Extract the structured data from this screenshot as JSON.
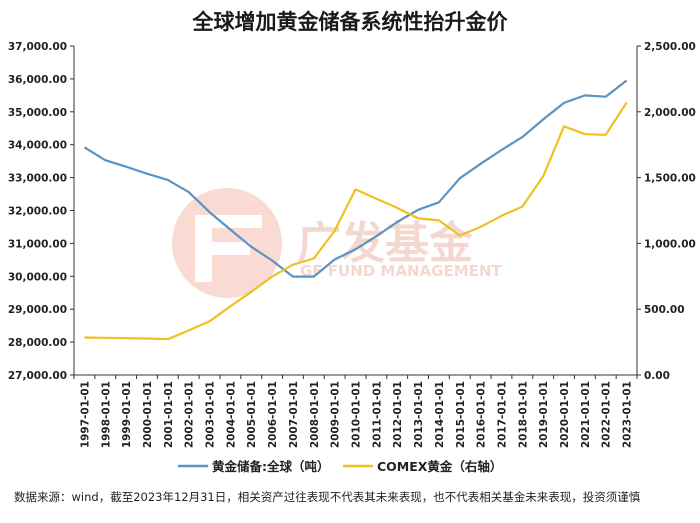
{
  "chart_data": {
    "type": "line",
    "title": "全球增加黄金储备系统性抬升金价",
    "x": [
      "1997-01-01",
      "1998-01-01",
      "1999-01-01",
      "2000-01-01",
      "2001-01-01",
      "2002-01-01",
      "2003-01-01",
      "2004-01-01",
      "2005-01-01",
      "2006-01-01",
      "2007-01-01",
      "2008-01-01",
      "2009-01-01",
      "2010-01-01",
      "2011-01-01",
      "2012-01-01",
      "2013-01-01",
      "2014-01-01",
      "2015-01-01",
      "2016-01-01",
      "2017-01-01",
      "2018-01-01",
      "2019-01-01",
      "2020-01-01",
      "2021-01-01",
      "2022-01-01",
      "2023-01-01"
    ],
    "left_axis": {
      "ylim": [
        27000,
        37000
      ],
      "ticks": [
        "27,000.00",
        "28,000.00",
        "29,000.00",
        "30,000.00",
        "31,000.00",
        "32,000.00",
        "33,000.00",
        "34,000.00",
        "35,000.00",
        "36,000.00",
        "37,000.00"
      ]
    },
    "right_axis": {
      "ylim": [
        0,
        2500
      ],
      "ticks": [
        "0.00",
        "500.00",
        "1,000.00",
        "1,500.00",
        "2,000.00",
        "2,500.00"
      ]
    },
    "series": [
      {
        "name": "黄金储备:全球（吨）",
        "axis": "left",
        "color": "#5b93c2",
        "values": [
          33920,
          33530,
          33330,
          33120,
          32930,
          32560,
          31950,
          31420,
          30900,
          30480,
          29990,
          29990,
          30510,
          30820,
          31220,
          31650,
          32020,
          32250,
          32980,
          33420,
          33840,
          34230,
          34770,
          35270,
          35500,
          35460,
          35950
        ]
      },
      {
        "name": "COMEX黄金（右轴）",
        "axis": "right",
        "color": "#f0c020",
        "values": [
          285,
          283,
          280,
          277,
          272,
          338,
          408,
          522,
          632,
          748,
          838,
          885,
          1095,
          1410,
          1340,
          1270,
          1190,
          1175,
          1060,
          1125,
          1210,
          1280,
          1510,
          1890,
          1830,
          1825,
          2070
        ]
      }
    ],
    "grid": false,
    "legend": "bottom"
  },
  "watermark": {
    "brand": "广发基金",
    "sub": "GF FUND MANAGEMENT"
  },
  "footnote": "数据来源：wind，截至2023年12月31日，相关资产过往表现不代表其未来表现，也不代表相关基金未来表现，投资须谨慎"
}
